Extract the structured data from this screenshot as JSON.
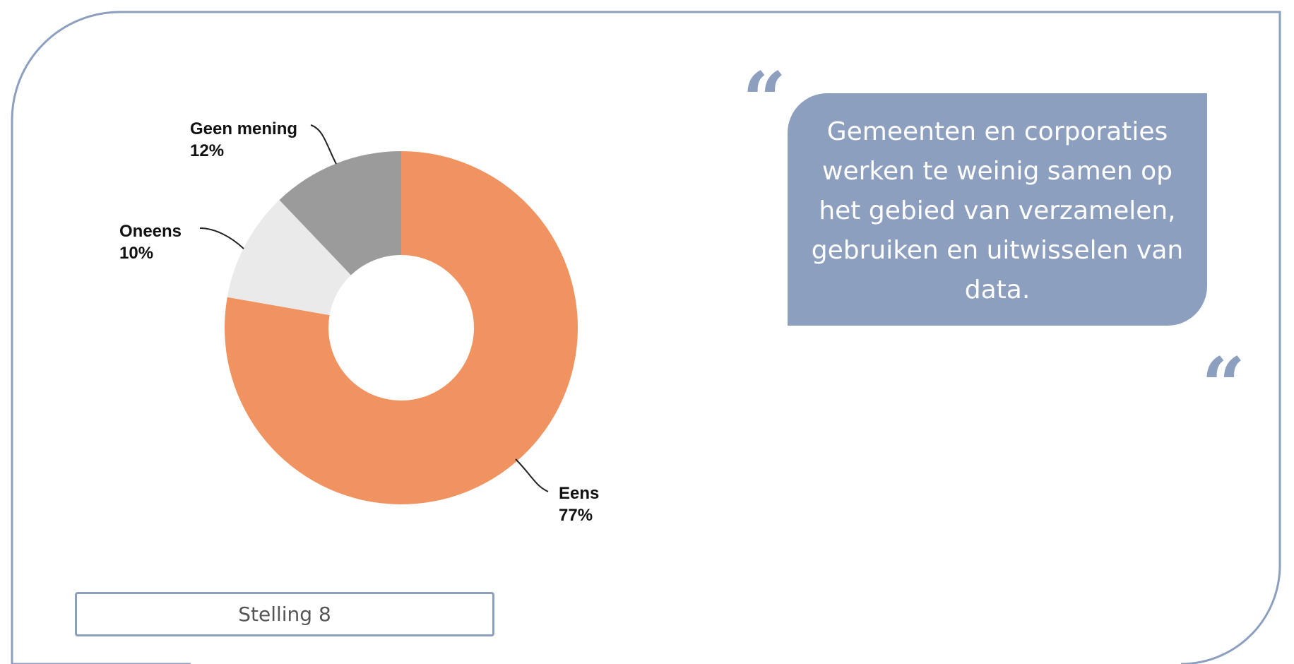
{
  "colors": {
    "frame": "#8d9fbf",
    "quote_bg": "#8d9fbf",
    "quote_text": "#ffffff"
  },
  "chart_data": {
    "type": "pie",
    "variant": "donut",
    "start_angle_deg": 0,
    "direction": "clockwise",
    "slices": [
      {
        "label": "Eens",
        "value": 77,
        "value_label": "77%",
        "color": "#f09360"
      },
      {
        "label": "Oneens",
        "value": 10,
        "value_label": "10%",
        "color": "#eaeaea"
      },
      {
        "label": "Geen mening",
        "value": 12,
        "value_label": "12%",
        "color": "#9b9b9b"
      }
    ]
  },
  "quote": {
    "open_mark": "“",
    "close_mark": "“",
    "text": "Gemeenten en corporaties werken te weinig samen op het gebied van verzamelen, gebruiken en uitwisselen van data."
  },
  "caption": "Stelling 8"
}
